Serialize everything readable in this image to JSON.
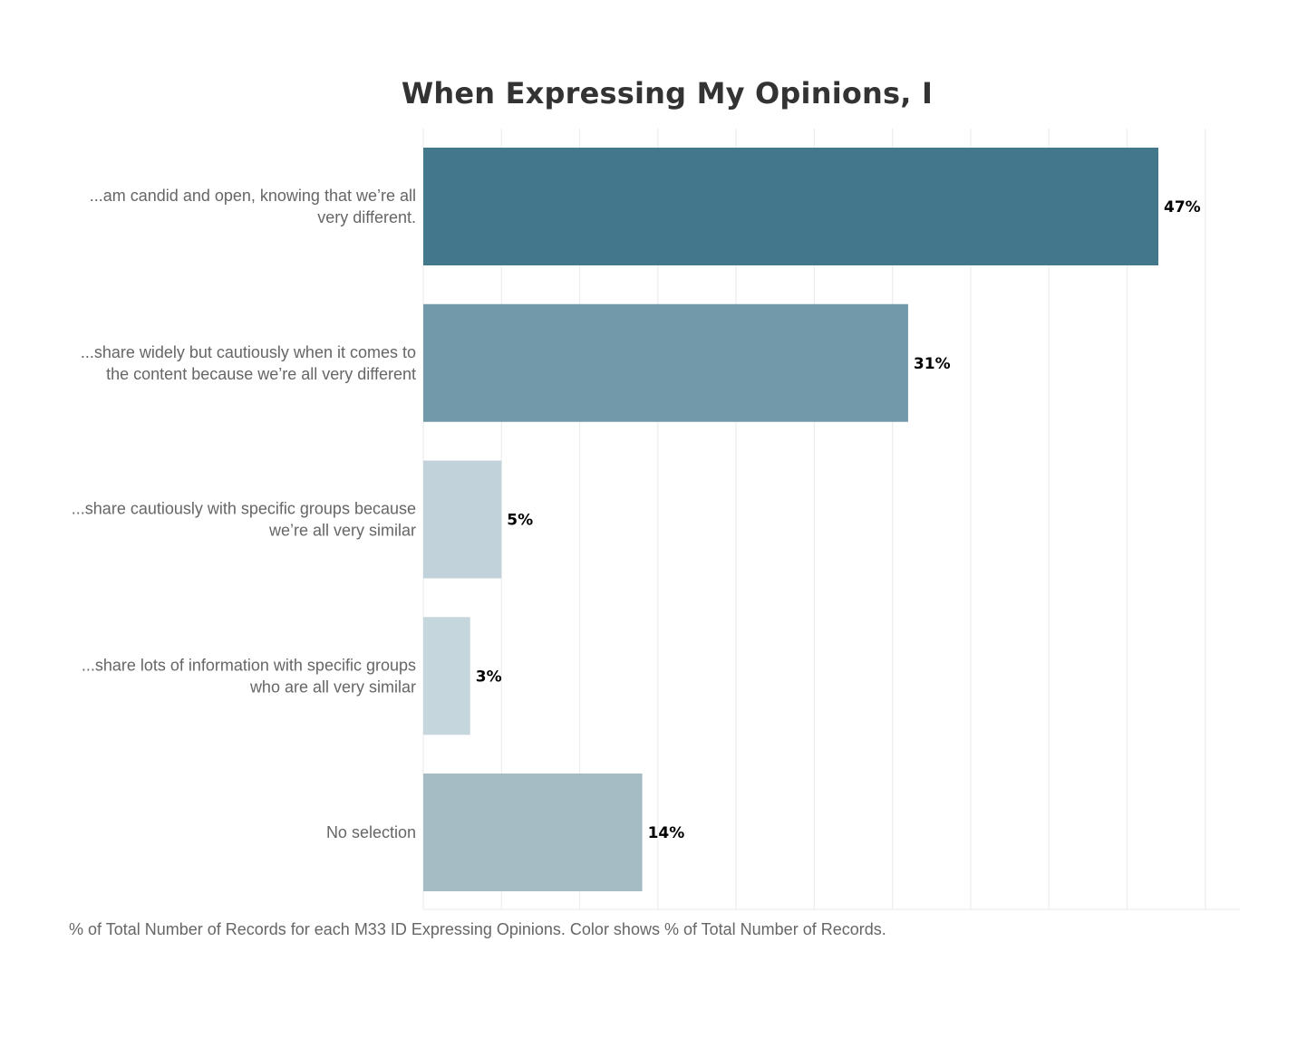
{
  "chart_data": {
    "type": "bar",
    "orientation": "horizontal",
    "title": "When Expressing My Opinions, I",
    "categories": [
      [
        "...am candid and open, knowing that we’re all",
        "very different."
      ],
      [
        "...share widely but cautiously when it comes to",
        "the content because we’re all very different"
      ],
      [
        "...share cautiously with specific groups because",
        "we’re all very similar"
      ],
      [
        "...share lots of information with specific groups",
        "who are all very similar"
      ],
      [
        "No selection"
      ]
    ],
    "values": [
      47,
      31,
      5,
      3,
      14
    ],
    "value_labels": [
      "47%",
      "31%",
      "5%",
      "3%",
      "14%"
    ],
    "colors": [
      "#42778c",
      "#7299a9",
      "#c2d2da",
      "#c6d6dd",
      "#a5bcc5"
    ],
    "xlim": [
      0,
      52.5
    ],
    "grid": true,
    "xlabel": "",
    "ylabel": ""
  },
  "caption": "% of Total Number of Records for each M33 ID Expressing Opinions.  Color shows % of Total Number of Records."
}
